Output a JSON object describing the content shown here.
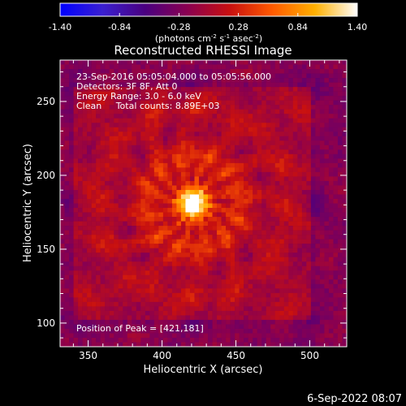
{
  "chart_data": {
    "type": "heatmap",
    "title": "Reconstructed RHESSI Image",
    "xlabel": "Heliocentric X (arcsec)",
    "ylabel": "Heliocentric Y (arcsec)",
    "xlim": [
      331,
      525
    ],
    "ylim": [
      84,
      278
    ],
    "xticks": [
      350,
      400,
      450,
      500
    ],
    "yticks": [
      100,
      150,
      200,
      250
    ],
    "peak": [
      421,
      181
    ],
    "colorbar": {
      "min": -1.4,
      "max": 1.4,
      "ticks": [
        "-1.40",
        "-0.84",
        "-0.28",
        "0.28",
        "0.84",
        "1.40"
      ],
      "label_main": "(photons cm",
      "label_sup1": "-2",
      "label_mid1": " s",
      "label_sup2": "-1",
      "label_mid2": " asec",
      "label_sup3": "-2",
      "label_end": ")",
      "stops": [
        "#0000ff",
        "#3a1fd0",
        "#4a0080",
        "#8a0050",
        "#c81010",
        "#ff5a00",
        "#ffb000",
        "#ffffff"
      ]
    },
    "annotations": [
      "23-Sep-2016 05:05:04.000 to 05:05:56.000",
      "Detectors: 3F 8F, Att 0",
      "Energy Range: 3.0 - 6.0 keV",
      "Clean     Total counts: 8.89E+03"
    ],
    "peak_label": "Position of Peak = [421,181]"
  },
  "footer": {
    "timestamp": "6-Sep-2022 08:07"
  }
}
